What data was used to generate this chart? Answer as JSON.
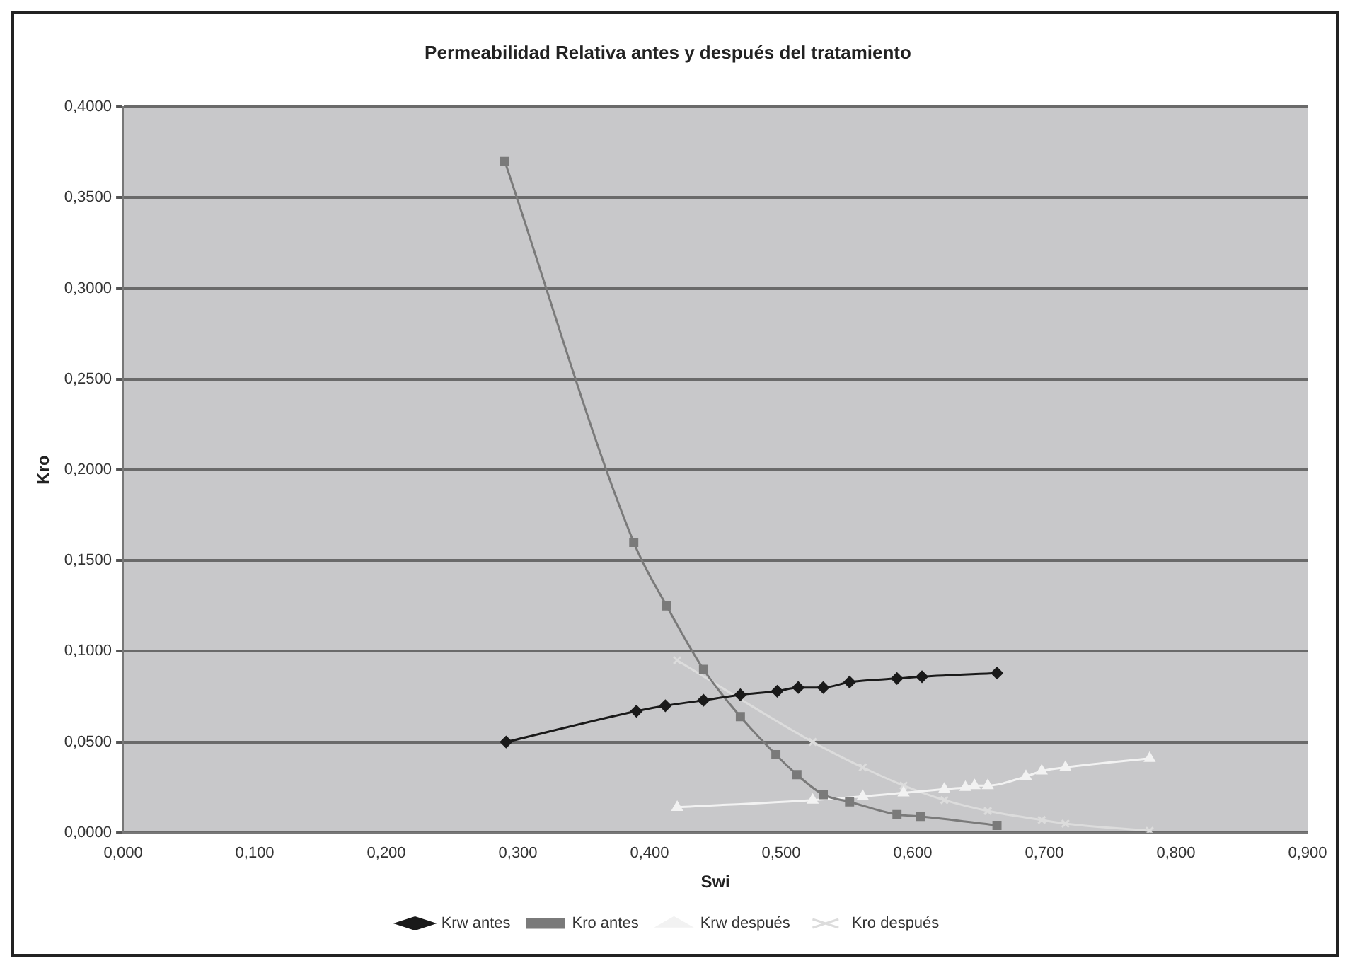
{
  "chart_data": {
    "type": "line",
    "title": "Permeabilidad Relativa antes y después del tratamiento",
    "xlabel": "Swi",
    "ylabel": "Kro",
    "xlim": [
      0,
      0.9
    ],
    "xticks": [
      {
        "value": 0,
        "label": "0,000"
      },
      {
        "value": 0.1,
        "label": "0,100"
      },
      {
        "value": 0.2,
        "label": "0,200"
      },
      {
        "value": 0.3,
        "label": "0,300"
      },
      {
        "value": 0.4,
        "label": "0,400"
      },
      {
        "value": 0.5,
        "label": "0,500"
      },
      {
        "value": 0.6,
        "label": "0,600"
      },
      {
        "value": 0.7,
        "label": "0,700"
      },
      {
        "value": 0.8,
        "label": "0,800"
      },
      {
        "value": 0.9,
        "label": "0,900"
      }
    ],
    "ylim": [
      0,
      0.4
    ],
    "yticks": [
      {
        "value": 0,
        "label": "0,0000"
      },
      {
        "value": 0.05,
        "label": "0,0500"
      },
      {
        "value": 0.1,
        "label": "0,1000"
      },
      {
        "value": 0.15,
        "label": "0,1500"
      },
      {
        "value": 0.2,
        "label": "0,2000"
      },
      {
        "value": 0.25,
        "label": "0,2500"
      },
      {
        "value": 0.3,
        "label": "0,3000"
      },
      {
        "value": 0.35,
        "label": "0,3500"
      },
      {
        "value": 0.4,
        "label": "0,4000"
      }
    ],
    "grid": "y",
    "legend": "bottom",
    "series": [
      {
        "name": "Krw antes",
        "color": "#1a1a1a",
        "marker": "diamond",
        "x": [
          0.291,
          0.39,
          0.412,
          0.441,
          0.469,
          0.497,
          0.513,
          0.532,
          0.552,
          0.588,
          0.607,
          0.664
        ],
        "values": [
          0.05,
          0.067,
          0.07,
          0.073,
          0.076,
          0.078,
          0.08,
          0.08,
          0.083,
          0.085,
          0.086,
          0.088
        ]
      },
      {
        "name": "Kro antes",
        "color": "#7a7a7a",
        "marker": "square",
        "x": [
          0.29,
          0.388,
          0.413,
          0.441,
          0.469,
          0.496,
          0.512,
          0.532,
          0.552,
          0.588,
          0.606,
          0.664
        ],
        "values": [
          0.37,
          0.16,
          0.125,
          0.09,
          0.064,
          0.043,
          0.032,
          0.021,
          0.017,
          0.01,
          0.009,
          0.004
        ]
      },
      {
        "name": "Krw después",
        "color": "#f2f2f2",
        "marker": "triangle",
        "x": [
          0.421,
          0.524,
          0.562,
          0.593,
          0.624,
          0.64,
          0.647,
          0.657,
          0.686,
          0.698,
          0.716,
          0.78
        ],
        "values": [
          0.014,
          0.018,
          0.02,
          0.022,
          0.024,
          0.025,
          0.026,
          0.026,
          0.031,
          0.034,
          0.036,
          0.041
        ]
      },
      {
        "name": "Kro después",
        "color": "#dcdcdc",
        "marker": "cross",
        "x": [
          0.421,
          0.524,
          0.562,
          0.593,
          0.624,
          0.657,
          0.698,
          0.716,
          0.78
        ],
        "values": [
          0.095,
          0.05,
          0.036,
          0.026,
          0.018,
          0.012,
          0.007,
          0.005,
          0.001
        ]
      }
    ]
  }
}
